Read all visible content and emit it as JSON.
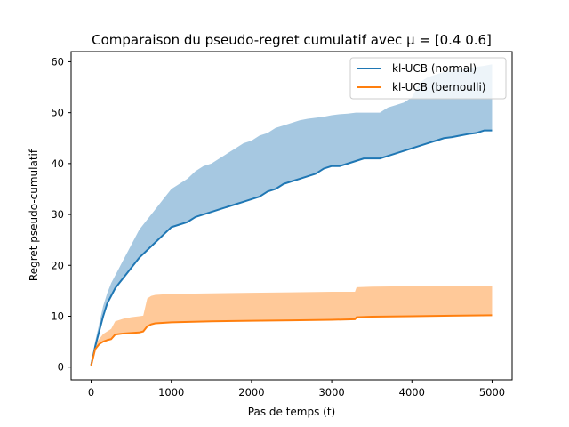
{
  "chart_data": {
    "type": "line",
    "title": "Comparaison du pseudo-regret cumulatif avec μ = [0.4 0.6]",
    "xlabel": "Pas de temps (t)",
    "ylabel": "Regret pseudo-cumulatif",
    "xlim": [
      -250,
      5250
    ],
    "ylim": [
      -2.5,
      62
    ],
    "xticks": [
      0,
      1000,
      2000,
      3000,
      4000,
      5000
    ],
    "yticks": [
      0,
      10,
      20,
      30,
      40,
      50,
      60
    ],
    "grid": false,
    "legend_position": "top-right",
    "series": [
      {
        "name": "kl-UCB (normal)",
        "color": "#1f77b4",
        "band_color": "#a6c8e1",
        "x": [
          0,
          50,
          100,
          150,
          200,
          250,
          300,
          350,
          400,
          500,
          600,
          700,
          800,
          900,
          1000,
          1100,
          1200,
          1300,
          1400,
          1500,
          1600,
          1700,
          1800,
          1900,
          2000,
          2100,
          2200,
          2300,
          2400,
          2500,
          2600,
          2700,
          2800,
          2900,
          3000,
          3100,
          3200,
          3300,
          3400,
          3500,
          3600,
          3700,
          3800,
          3900,
          4000,
          4100,
          4200,
          4300,
          4400,
          4500,
          4600,
          4700,
          4800,
          4900,
          5000
        ],
        "values": [
          0.4,
          4,
          7,
          10,
          12.5,
          14,
          15.5,
          16.5,
          17.5,
          19.5,
          21.5,
          23,
          24.5,
          26,
          27.5,
          28,
          28.5,
          29.5,
          30,
          30.5,
          31,
          31.5,
          32,
          32.5,
          33,
          33.5,
          34.5,
          35,
          36,
          36.5,
          37,
          37.5,
          38,
          39,
          39.5,
          39.5,
          40,
          40.5,
          41,
          41,
          41,
          41.5,
          42,
          42.5,
          43,
          43.5,
          44,
          44.5,
          45,
          45.2,
          45.5,
          45.8,
          46,
          46.5,
          46.5
        ],
        "upper": [
          0.6,
          5,
          8.5,
          12,
          14.5,
          16.5,
          18,
          19.5,
          21,
          24,
          27,
          29,
          31,
          33,
          35,
          36,
          37,
          38.5,
          39.5,
          40,
          41,
          42,
          43,
          44,
          44.5,
          45.5,
          46,
          47,
          47.5,
          48,
          48.5,
          48.8,
          49,
          49.2,
          49.5,
          49.7,
          49.8,
          50,
          50,
          50,
          50,
          51,
          51.5,
          52,
          53,
          56,
          57,
          57.5,
          58,
          58.3,
          58.5,
          58.7,
          59,
          59.2,
          59.5
        ]
      },
      {
        "name": "kl-UCB (bernoulli)",
        "color": "#ff7f0e",
        "band_color": "#ffc999",
        "x": [
          0,
          50,
          100,
          150,
          200,
          250,
          300,
          400,
          500,
          600,
          650,
          700,
          750,
          800,
          1000,
          1500,
          2000,
          2500,
          3000,
          3290,
          3310,
          3500,
          4000,
          4500,
          5000
        ],
        "values": [
          0.3,
          3.5,
          4.5,
          5,
          5.3,
          5.5,
          6.4,
          6.6,
          6.7,
          6.8,
          7,
          8,
          8.4,
          8.6,
          8.8,
          9,
          9.1,
          9.2,
          9.3,
          9.4,
          9.8,
          9.9,
          10,
          10.1,
          10.2
        ],
        "upper": [
          0.5,
          4.5,
          5.5,
          6.5,
          7,
          7.5,
          9,
          9.5,
          9.8,
          10,
          10.1,
          13.5,
          14,
          14.2,
          14.4,
          14.5,
          14.6,
          14.7,
          14.8,
          14.8,
          15.7,
          15.8,
          15.9,
          15.9,
          16
        ]
      }
    ]
  }
}
